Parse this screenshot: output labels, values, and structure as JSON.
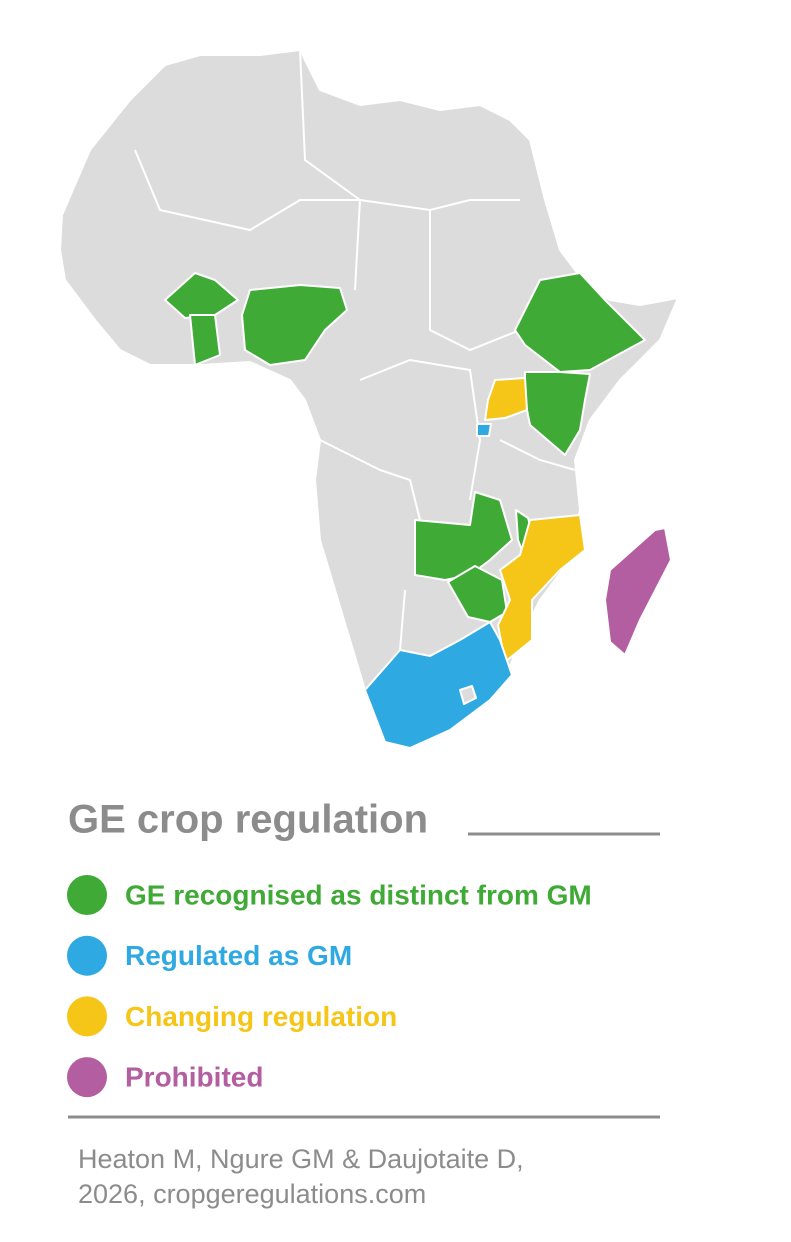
{
  "title": "GE crop regulation",
  "legend": [
    {
      "label": "GE recognised as distinct from GM",
      "color": "#3faa35"
    },
    {
      "label": "Regulated as GM",
      "color": "#2fa9e1"
    },
    {
      "label": "Changing regulation",
      "color": "#f5c518"
    },
    {
      "label": "Prohibited",
      "color": "#b45ea2"
    }
  ],
  "source": [
    "Heaton M, Ngure GM & Daujotaite D,",
    "2026, cropgeregulations.com"
  ]
}
